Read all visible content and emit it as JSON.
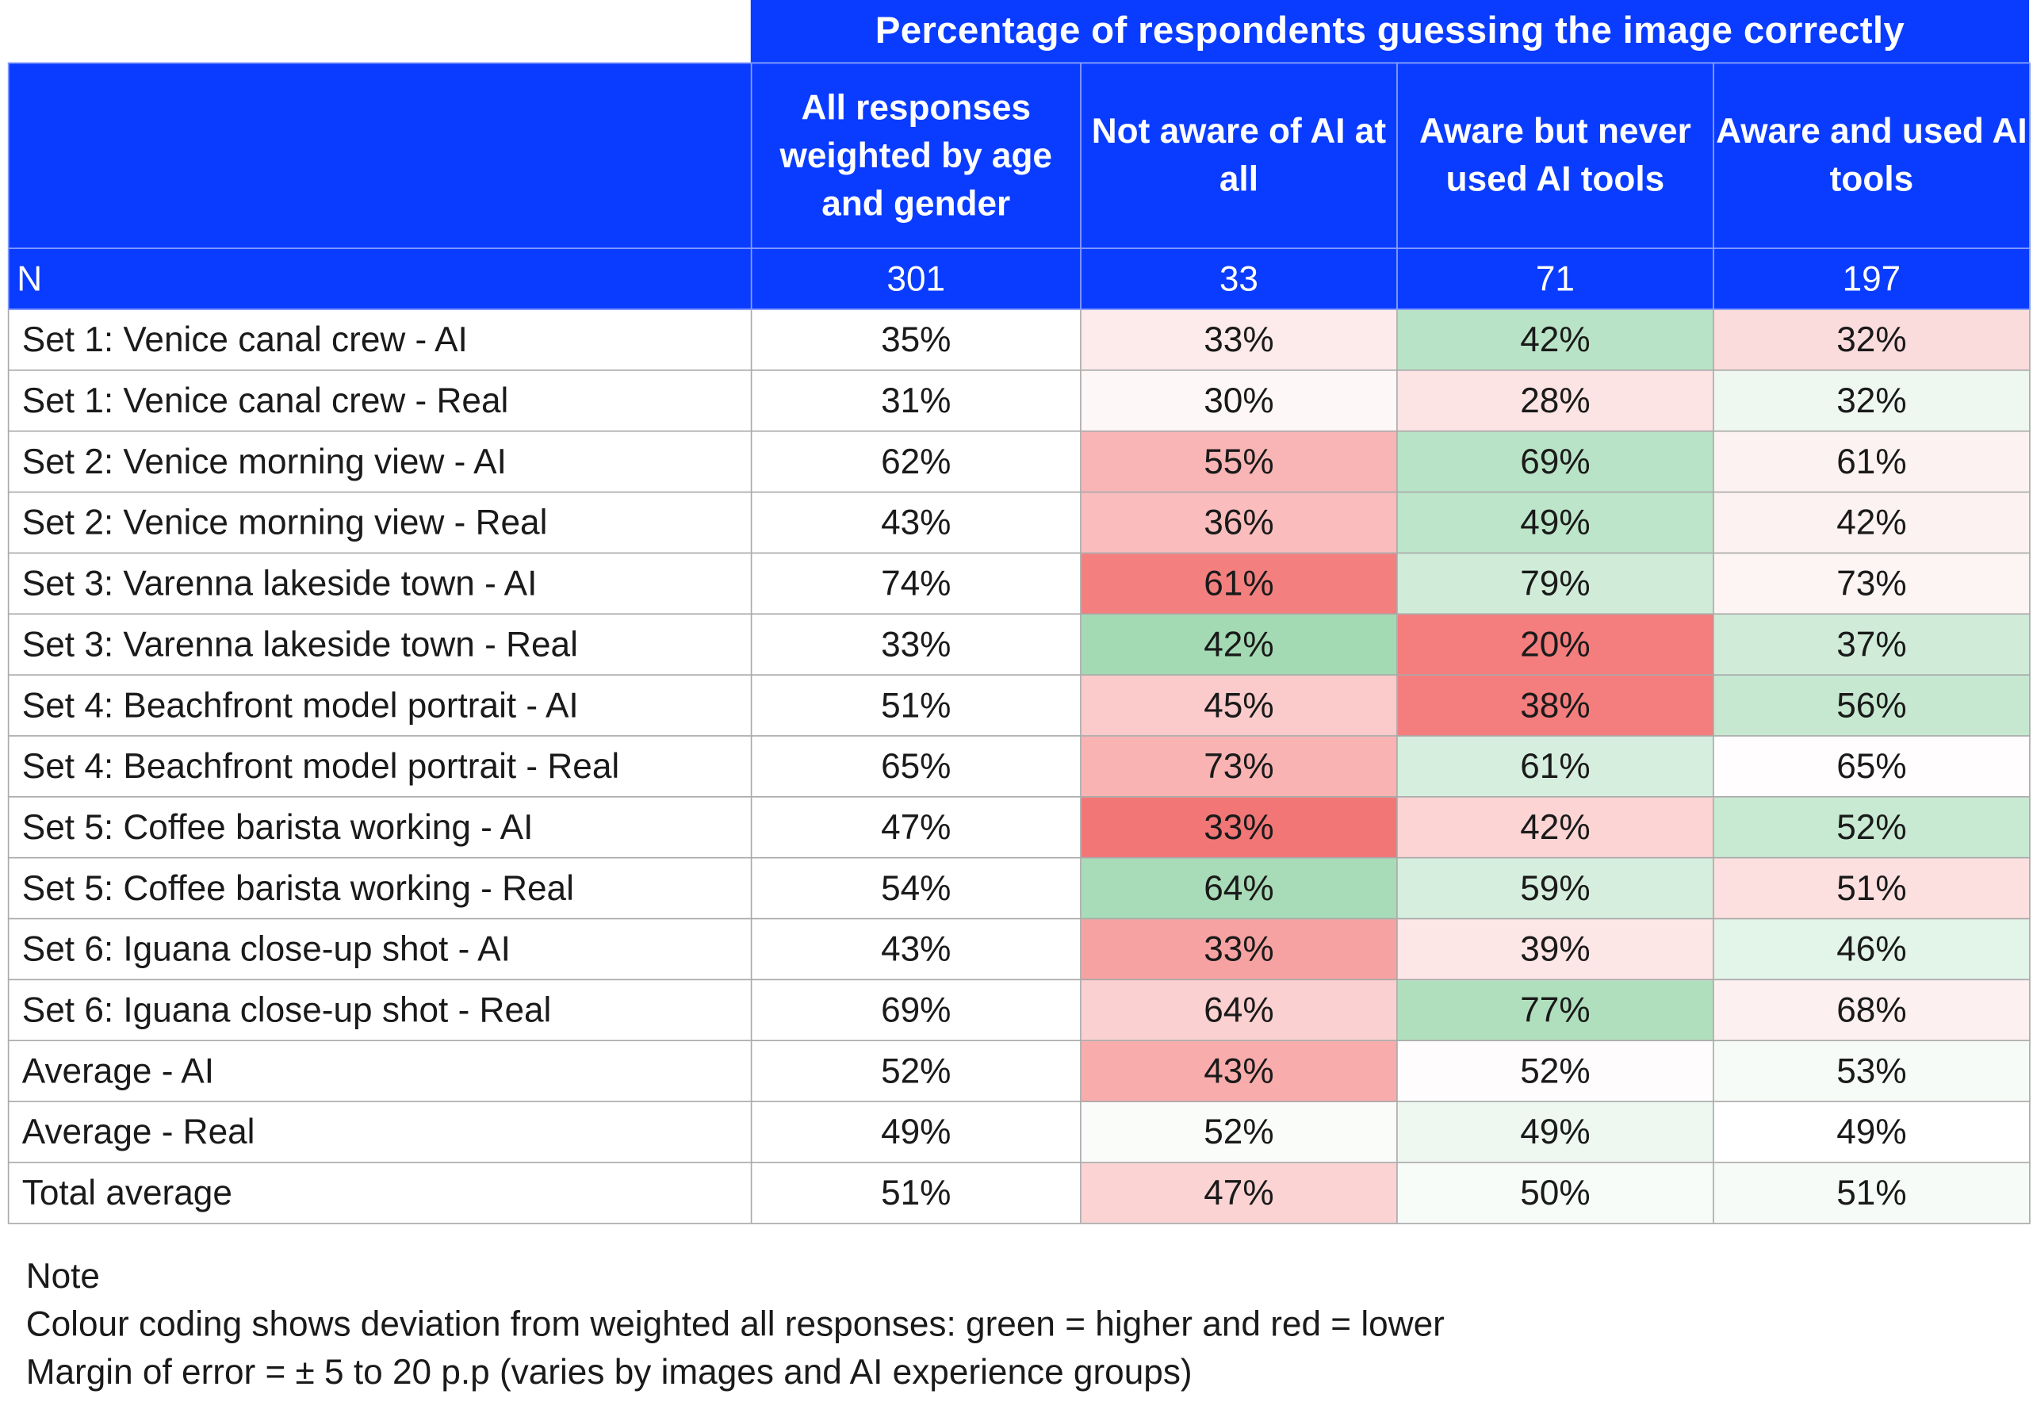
{
  "chart_data": {
    "type": "table",
    "title": "Percentage of respondents guessing the image correctly",
    "columns": [
      "All responses weighted by age and gender",
      "Not aware of AI at all",
      "Aware but never used AI tools",
      "Aware and used AI tools"
    ],
    "n_label": "N",
    "n_values": [
      "301",
      "33",
      "71",
      "197"
    ],
    "rows": [
      {
        "label": "Set 1: Venice canal crew - AI",
        "values": [
          "35%",
          "33%",
          "42%",
          "32%"
        ],
        "colors": [
          "#ffffff",
          "#fdeaea",
          "#b9e3c6",
          "#fbdcdc"
        ]
      },
      {
        "label": "Set 1: Venice canal crew - Real",
        "values": [
          "31%",
          "30%",
          "28%",
          "32%"
        ],
        "colors": [
          "#ffffff",
          "#fdf7f7",
          "#fce4e4",
          "#eef8f1"
        ]
      },
      {
        "label": "Set 2: Venice morning view - AI",
        "values": [
          "62%",
          "55%",
          "69%",
          "61%"
        ],
        "colors": [
          "#ffffff",
          "#f9b5b5",
          "#b9e3c6",
          "#fdf2f2"
        ]
      },
      {
        "label": "Set 2: Venice morning view - Real",
        "values": [
          "43%",
          "36%",
          "49%",
          "42%"
        ],
        "colors": [
          "#ffffff",
          "#fabcbc",
          "#bde5c9",
          "#fdf2f2"
        ]
      },
      {
        "label": "Set 3: Varenna lakeside town - AI",
        "values": [
          "74%",
          "61%",
          "79%",
          "73%"
        ],
        "colors": [
          "#ffffff",
          "#f37f7f",
          "#d0ecd9",
          "#fdf4f4"
        ]
      },
      {
        "label": "Set 3: Varenna lakeside town - Real",
        "values": [
          "33%",
          "42%",
          "20%",
          "37%"
        ],
        "colors": [
          "#ffffff",
          "#a3d9b3",
          "#f47d7d",
          "#d0ecd9"
        ]
      },
      {
        "label": "Set 4: Beachfront model portrait - AI",
        "values": [
          "51%",
          "45%",
          "38%",
          "56%"
        ],
        "colors": [
          "#ffffff",
          "#fbcaca",
          "#f47d7d",
          "#c6e8d0"
        ]
      },
      {
        "label": "Set 4: Beachfront model portrait - Real",
        "values": [
          "65%",
          "73%",
          "61%",
          "65%"
        ],
        "colors": [
          "#ffffff",
          "#f9b3b3",
          "#d6eede",
          "#fffdfd"
        ]
      },
      {
        "label": "Set 5: Coffee barista working - AI",
        "values": [
          "47%",
          "33%",
          "42%",
          "52%"
        ],
        "colors": [
          "#ffffff",
          "#f27676",
          "#fcd4d4",
          "#c8e9d2"
        ]
      },
      {
        "label": "Set 5: Coffee barista working - Real",
        "values": [
          "54%",
          "64%",
          "59%",
          "51%"
        ],
        "colors": [
          "#ffffff",
          "#a8dbb7",
          "#d6eede",
          "#fce0e0"
        ]
      },
      {
        "label": "Set 6: Iguana close-up shot - AI",
        "values": [
          "43%",
          "33%",
          "39%",
          "46%"
        ],
        "colors": [
          "#ffffff",
          "#f7a2a2",
          "#fde6e6",
          "#e3f4e8"
        ]
      },
      {
        "label": "Set 6: Iguana close-up shot - Real",
        "values": [
          "69%",
          "64%",
          "77%",
          "68%"
        ],
        "colors": [
          "#ffffff",
          "#fbd0d0",
          "#b0dfbe",
          "#fdf0f0"
        ]
      },
      {
        "label": "Average - AI",
        "values": [
          "52%",
          "43%",
          "52%",
          "53%"
        ],
        "colors": [
          "#ffffff",
          "#f8acac",
          "#fefcfc",
          "#f7fbf8"
        ]
      },
      {
        "label": "Average - Real",
        "values": [
          "49%",
          "52%",
          "49%",
          "49%"
        ],
        "colors": [
          "#ffffff",
          "#fafcfa",
          "#eef8f1",
          "#ffffff"
        ]
      },
      {
        "label": "Total average",
        "values": [
          "51%",
          "47%",
          "50%",
          "51%"
        ],
        "colors": [
          "#ffffff",
          "#fbd3d3",
          "#f8fcf9",
          "#f7fbf8"
        ]
      }
    ]
  },
  "colors": {
    "header_blue": "#0a3cff",
    "higher_green": "#a3d9b3",
    "lower_red": "#f27676"
  },
  "notes": [
    "Note",
    "Colour coding shows deviation from weighted all responses: green = higher and red = lower",
    "Margin of error = ± 5 to 20 p.p (varies by images and AI experience groups)"
  ]
}
